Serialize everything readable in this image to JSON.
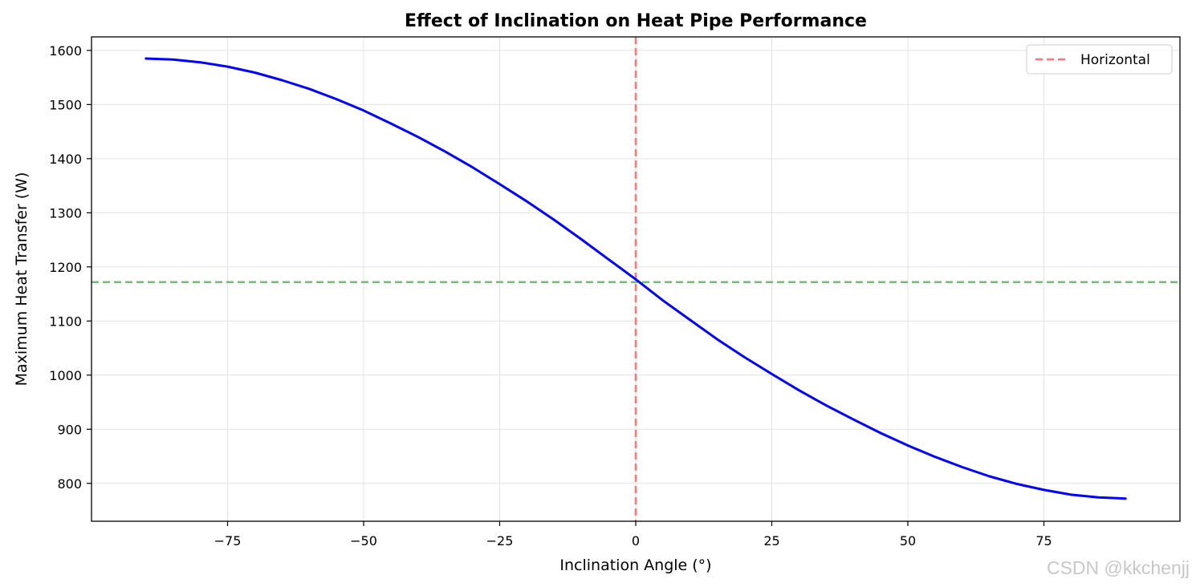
{
  "chart_data": {
    "type": "line",
    "title": "Effect of Inclination on Heat Pipe Performance",
    "xlabel": "Inclination Angle (°)",
    "ylabel": "Maximum Heat Transfer (W)",
    "xlim": [
      -100,
      100
    ],
    "ylim": [
      730,
      1625
    ],
    "xticks": [
      -75,
      -50,
      -25,
      0,
      25,
      50,
      75
    ],
    "xtick_labels": [
      "−75",
      "−50",
      "−25",
      "0",
      "25",
      "50",
      "75"
    ],
    "yticks": [
      800,
      900,
      1000,
      1100,
      1200,
      1300,
      1400,
      1500,
      1600
    ],
    "ytick_labels": [
      "800",
      "900",
      "1000",
      "1100",
      "1200",
      "1300",
      "1400",
      "1500",
      "1600"
    ],
    "grid": true,
    "legend_position": "top-right",
    "series": [
      {
        "color": "#0000ff",
        "style": "solid",
        "x": [
          -90,
          -85,
          -80,
          -75,
          -70,
          -65,
          -60,
          -55,
          -50,
          -45,
          -40,
          -35,
          -30,
          -25,
          -20,
          -15,
          -10,
          -5,
          0,
          5,
          10,
          15,
          20,
          25,
          30,
          35,
          40,
          45,
          50,
          55,
          60,
          65,
          70,
          75,
          80,
          85,
          90
        ],
        "y": [
          1585,
          1583,
          1578,
          1570,
          1559,
          1545,
          1529,
          1510,
          1489,
          1465,
          1440,
          1413,
          1384,
          1353,
          1321,
          1287,
          1251,
          1214,
          1177,
          1138,
          1102,
          1066,
          1033,
          1002,
          972,
          944,
          918,
          893,
          870,
          849,
          830,
          813,
          799,
          788,
          779,
          774,
          772
        ]
      },
      {
        "name": "Horizontal",
        "type": "vline",
        "x": 0,
        "color": "#ff7777",
        "style": "dashed"
      },
      {
        "type": "hline",
        "y": 1172,
        "color": "#77bb77",
        "style": "dashed"
      }
    ]
  },
  "watermark": "CSDN @kkchenjj"
}
